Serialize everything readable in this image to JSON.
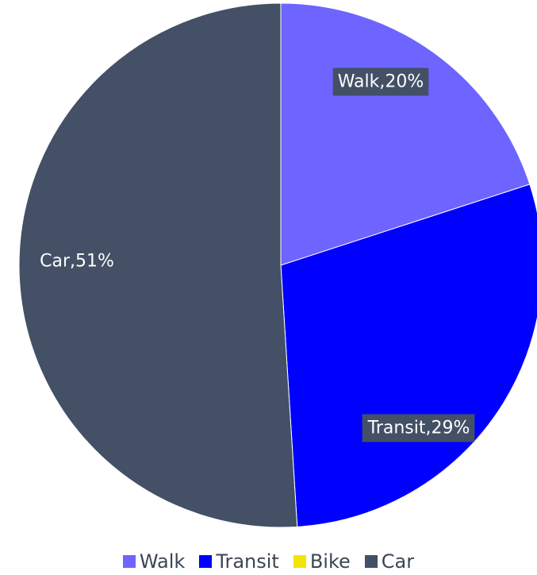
{
  "chart_data": {
    "type": "pie",
    "slices": [
      {
        "name": "Walk",
        "value": 20,
        "label": "Walk,20%",
        "color": "#6e64ff"
      },
      {
        "name": "Transit",
        "value": 29,
        "label": "Transit,29%",
        "color": "#0000ff"
      },
      {
        "name": "Bike",
        "value": 0,
        "label": "",
        "color": "#f2e600"
      },
      {
        "name": "Car",
        "value": 51,
        "label": "Car,51%",
        "color": "#435066"
      }
    ],
    "legend": {
      "placement": "bottom",
      "items": [
        "Walk",
        "Transit",
        "Bike",
        "Car"
      ]
    },
    "start_angle": "12 o'clock",
    "direction": "clockwise",
    "label_box_color": "#435066",
    "label_text_color": "#ffffff"
  }
}
